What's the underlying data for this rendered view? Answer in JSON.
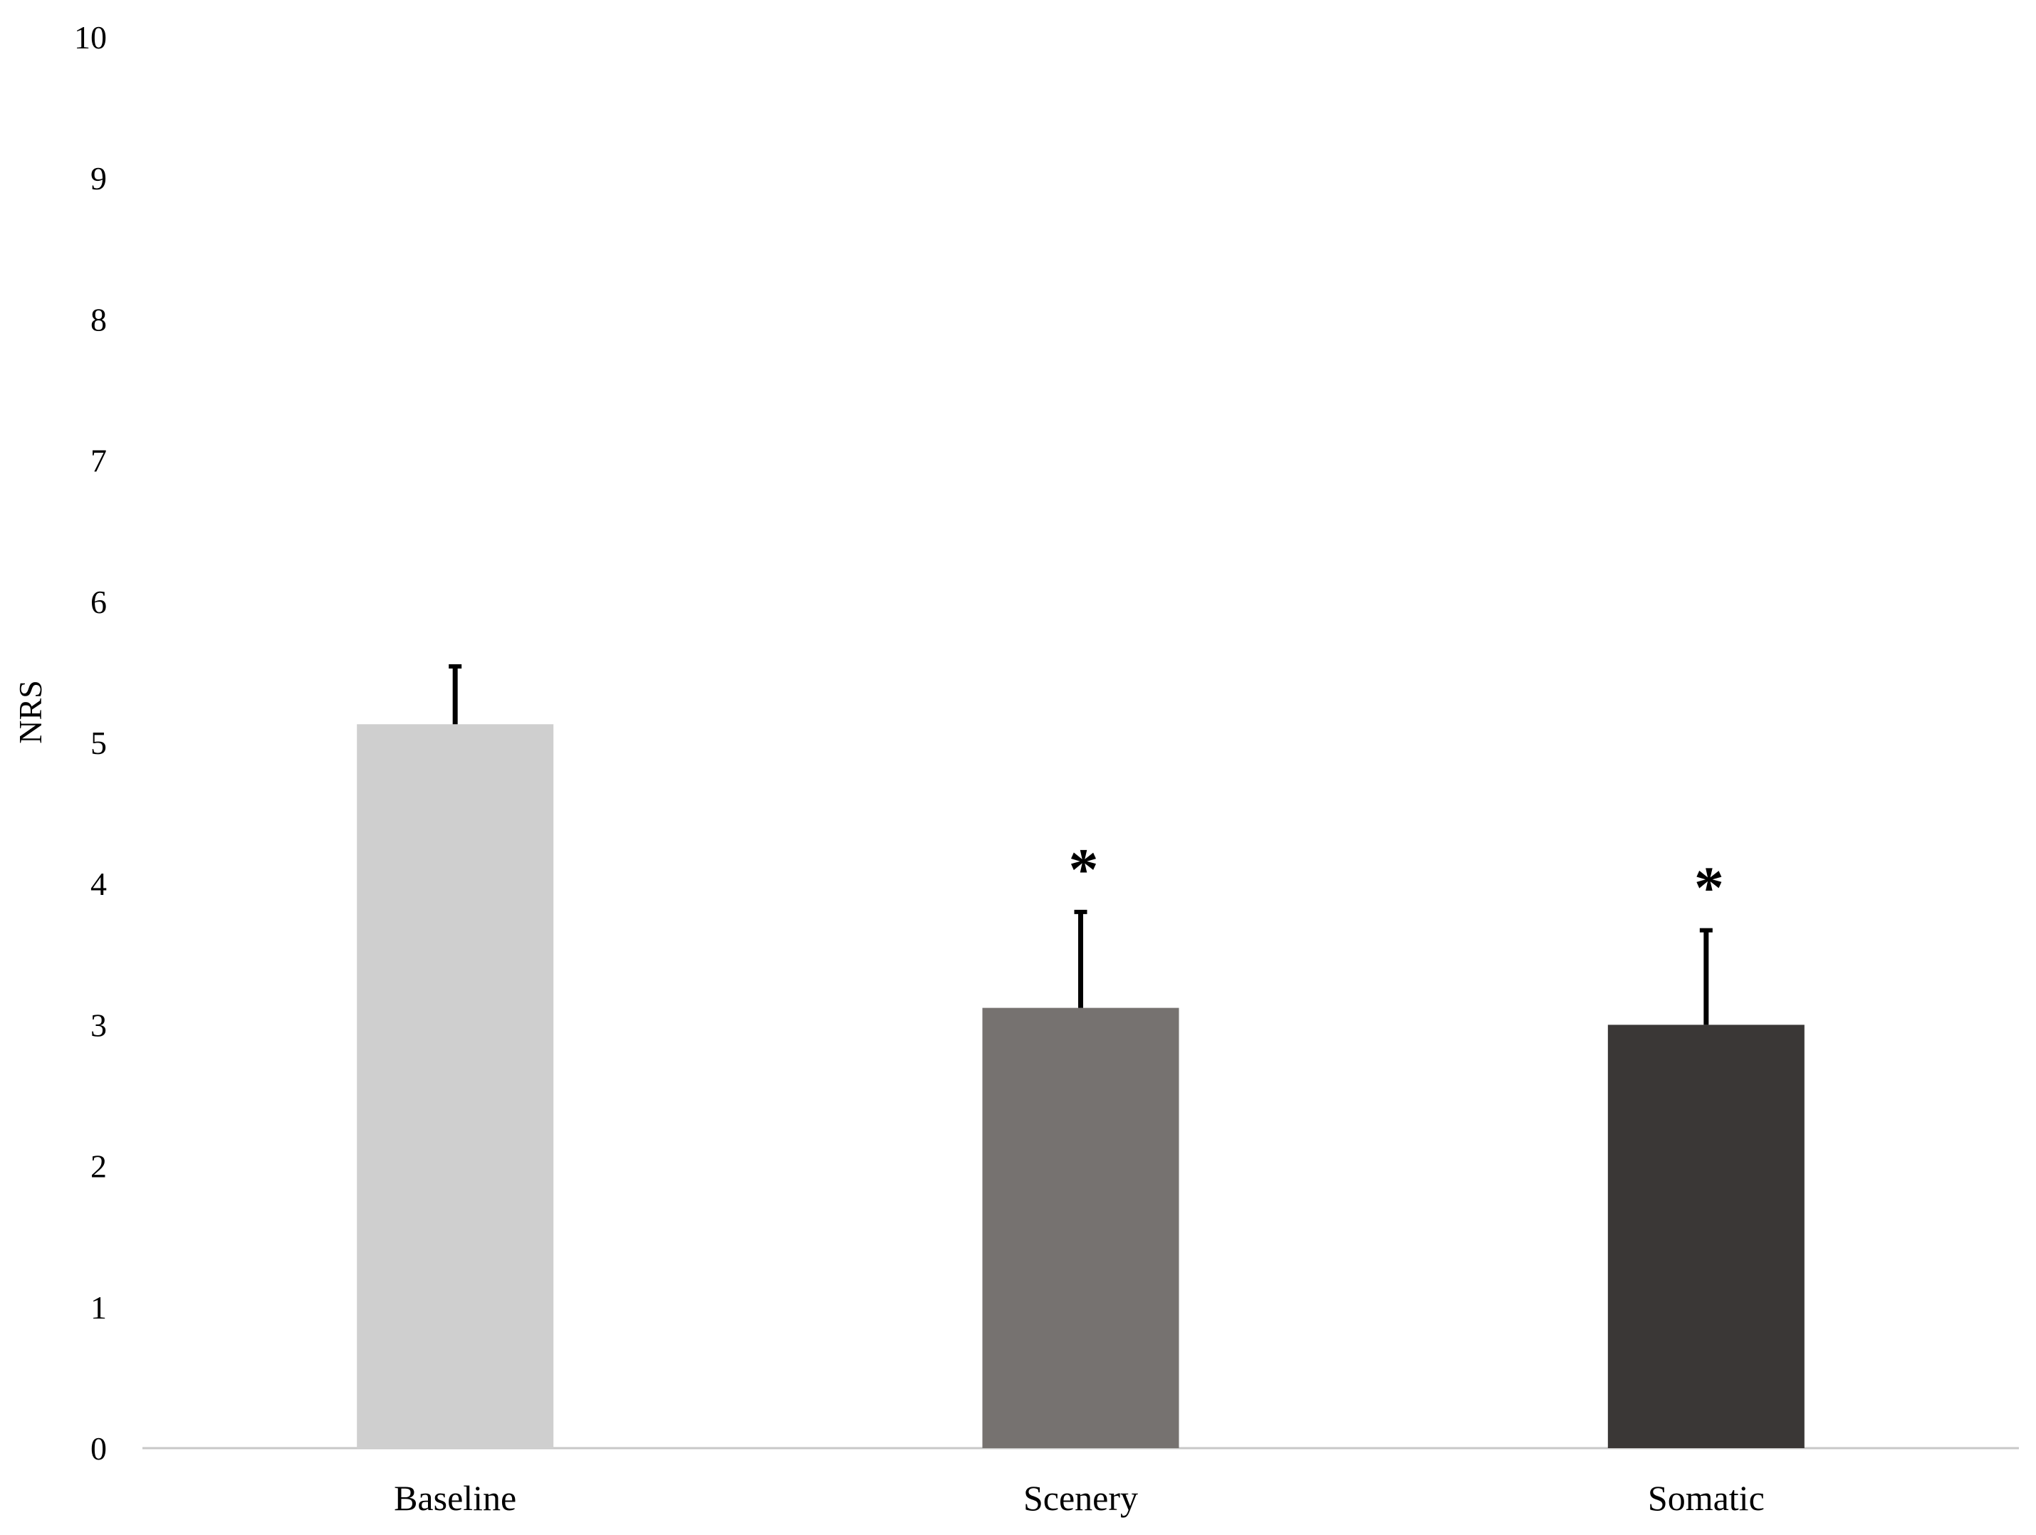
{
  "chart_data": {
    "type": "bar",
    "title": "",
    "xlabel": "",
    "ylabel": "NRS",
    "ylim": [
      0,
      10
    ],
    "yticks": [
      "0",
      "1",
      "2",
      "3",
      "4",
      "5",
      "6",
      "7",
      "8",
      "9",
      "10"
    ],
    "grid": false,
    "legend": "none",
    "categories": [
      "Baseline",
      "Scenery",
      "Somatic"
    ],
    "values": [
      5.13,
      3.12,
      3.0
    ],
    "error_upper": [
      0.41,
      0.68,
      0.67
    ],
    "colors": [
      "#cfcfcf",
      "#767270",
      "#3a3736"
    ],
    "annotations": [
      "",
      "*",
      "*"
    ],
    "axis_color": "#c8c8c8",
    "error_bar_color": "#000000"
  }
}
